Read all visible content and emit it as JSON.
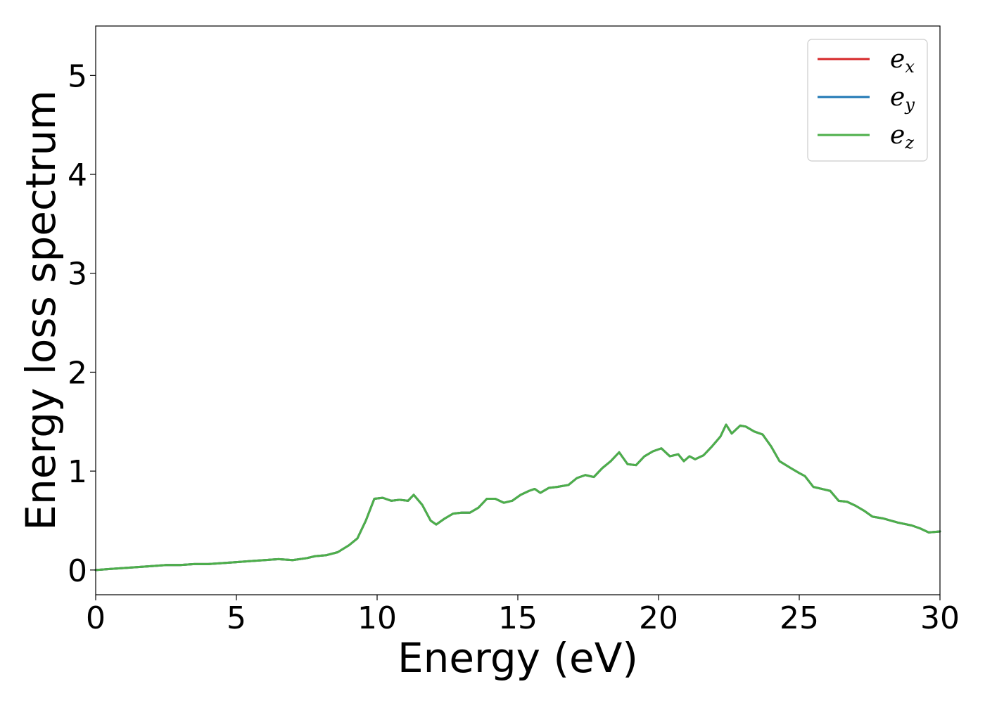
{
  "chart_data": {
    "type": "line",
    "title": "",
    "xlabel": "Energy (eV)",
    "ylabel": "Energy loss spectrum",
    "xlim": [
      0,
      30
    ],
    "ylim": [
      -0.25,
      5.5
    ],
    "xticks": [
      "0",
      "5",
      "10",
      "15",
      "20",
      "25",
      "30"
    ],
    "yticks": [
      "0",
      "1",
      "2",
      "3",
      "4",
      "5"
    ],
    "grid": false,
    "legend_position": "top-right",
    "series": [
      {
        "name": "e_x",
        "label_base": "e",
        "label_sub": "x",
        "color": "#d62728",
        "x": [
          0,
          0.5,
          1,
          1.5,
          2,
          2.5,
          3,
          3.5,
          4,
          4.5,
          5,
          5.5,
          6,
          6.5,
          7,
          7.5,
          7.8,
          8.2,
          8.6,
          9,
          9.3,
          9.6,
          9.9,
          10.2,
          10.5,
          10.8,
          11.1,
          11.3,
          11.6,
          11.9,
          12.1,
          12.4,
          12.7,
          13,
          13.3,
          13.6,
          13.9,
          14.2,
          14.5,
          14.8,
          15.1,
          15.4,
          15.6,
          15.8,
          16.1,
          16.4,
          16.8,
          17.1,
          17.4,
          17.7,
          18,
          18.3,
          18.6,
          18.9,
          19.2,
          19.5,
          19.8,
          20.1,
          20.4,
          20.7,
          20.9,
          21.1,
          21.3,
          21.6,
          21.9,
          22.2,
          22.4,
          22.6,
          22.9,
          23.1,
          23.4,
          23.7,
          24,
          24.3,
          24.7,
          25,
          25.2,
          25.5,
          25.8,
          26.1,
          26.4,
          26.7,
          27,
          27.3,
          27.6,
          28,
          28.5,
          29,
          29.3,
          29.6,
          30
        ],
        "y": [
          0.0,
          0.01,
          0.02,
          0.03,
          0.04,
          0.05,
          0.05,
          0.06,
          0.06,
          0.07,
          0.08,
          0.09,
          0.1,
          0.11,
          0.1,
          0.12,
          0.14,
          0.15,
          0.18,
          0.25,
          0.32,
          0.5,
          0.72,
          0.73,
          0.7,
          0.71,
          0.7,
          0.76,
          0.66,
          0.5,
          0.46,
          0.52,
          0.57,
          0.58,
          0.58,
          0.63,
          0.72,
          0.72,
          0.68,
          0.7,
          0.76,
          0.8,
          0.82,
          0.78,
          0.83,
          0.84,
          0.86,
          0.93,
          0.96,
          0.94,
          1.03,
          1.1,
          1.19,
          1.07,
          1.06,
          1.15,
          1.2,
          1.23,
          1.15,
          1.17,
          1.1,
          1.15,
          1.12,
          1.16,
          1.25,
          1.35,
          1.47,
          1.38,
          1.46,
          1.45,
          1.4,
          1.37,
          1.25,
          1.1,
          1.03,
          0.98,
          0.95,
          0.84,
          0.82,
          0.8,
          0.7,
          0.69,
          0.65,
          0.6,
          0.54,
          0.52,
          0.48,
          0.45,
          0.42,
          0.38,
          0.39
        ]
      },
      {
        "name": "e_y",
        "label_base": "e",
        "label_sub": "y",
        "color": "#1f77b4",
        "x": [
          0,
          0.5,
          1,
          1.5,
          2,
          2.5,
          3,
          3.5,
          4,
          4.5,
          5,
          5.5,
          6,
          6.5,
          7,
          7.5,
          7.8,
          8.2,
          8.6,
          9,
          9.3,
          9.6,
          9.9,
          10.2,
          10.5,
          10.8,
          11.1,
          11.3,
          11.6,
          11.9,
          12.1,
          12.4,
          12.7,
          13,
          13.3,
          13.6,
          13.9,
          14.2,
          14.5,
          14.8,
          15.1,
          15.4,
          15.6,
          15.8,
          16.1,
          16.4,
          16.8,
          17.1,
          17.4,
          17.7,
          18,
          18.3,
          18.6,
          18.9,
          19.2,
          19.5,
          19.8,
          20.1,
          20.4,
          20.7,
          20.9,
          21.1,
          21.3,
          21.6,
          21.9,
          22.2,
          22.4,
          22.6,
          22.9,
          23.1,
          23.4,
          23.7,
          24,
          24.3,
          24.7,
          25,
          25.2,
          25.5,
          25.8,
          26.1,
          26.4,
          26.7,
          27,
          27.3,
          27.6,
          28,
          28.5,
          29,
          29.3,
          29.6,
          30
        ],
        "y": [
          0.0,
          0.01,
          0.02,
          0.03,
          0.04,
          0.05,
          0.05,
          0.06,
          0.06,
          0.07,
          0.08,
          0.09,
          0.1,
          0.11,
          0.1,
          0.12,
          0.14,
          0.15,
          0.18,
          0.25,
          0.32,
          0.5,
          0.72,
          0.73,
          0.7,
          0.71,
          0.7,
          0.76,
          0.66,
          0.5,
          0.46,
          0.52,
          0.57,
          0.58,
          0.58,
          0.63,
          0.72,
          0.72,
          0.68,
          0.7,
          0.76,
          0.8,
          0.82,
          0.78,
          0.83,
          0.84,
          0.86,
          0.93,
          0.96,
          0.94,
          1.03,
          1.1,
          1.19,
          1.07,
          1.06,
          1.15,
          1.2,
          1.23,
          1.15,
          1.17,
          1.1,
          1.15,
          1.12,
          1.16,
          1.25,
          1.35,
          1.47,
          1.38,
          1.46,
          1.45,
          1.4,
          1.37,
          1.25,
          1.1,
          1.03,
          0.98,
          0.95,
          0.84,
          0.82,
          0.8,
          0.7,
          0.69,
          0.65,
          0.6,
          0.54,
          0.52,
          0.48,
          0.45,
          0.42,
          0.38,
          0.39
        ]
      },
      {
        "name": "e_z",
        "label_base": "e",
        "label_sub": "z",
        "color": "#4daf4a",
        "x": [
          0,
          0.5,
          1,
          1.5,
          2,
          2.5,
          3,
          3.5,
          4,
          4.5,
          5,
          5.5,
          6,
          6.5,
          7,
          7.5,
          7.8,
          8.2,
          8.6,
          9,
          9.3,
          9.6,
          9.9,
          10.2,
          10.5,
          10.8,
          11.1,
          11.3,
          11.6,
          11.9,
          12.1,
          12.4,
          12.7,
          13,
          13.3,
          13.6,
          13.9,
          14.2,
          14.5,
          14.8,
          15.1,
          15.4,
          15.6,
          15.8,
          16.1,
          16.4,
          16.8,
          17.1,
          17.4,
          17.7,
          18,
          18.3,
          18.6,
          18.9,
          19.2,
          19.5,
          19.8,
          20.1,
          20.4,
          20.7,
          20.9,
          21.1,
          21.3,
          21.6,
          21.9,
          22.2,
          22.4,
          22.6,
          22.9,
          23.1,
          23.4,
          23.7,
          24,
          24.3,
          24.7,
          25,
          25.2,
          25.5,
          25.8,
          26.1,
          26.4,
          26.7,
          27,
          27.3,
          27.6,
          28,
          28.5,
          29,
          29.3,
          29.6,
          30
        ],
        "y": [
          0.0,
          0.01,
          0.02,
          0.03,
          0.04,
          0.05,
          0.05,
          0.06,
          0.06,
          0.07,
          0.08,
          0.09,
          0.1,
          0.11,
          0.1,
          0.12,
          0.14,
          0.15,
          0.18,
          0.25,
          0.32,
          0.5,
          0.72,
          0.73,
          0.7,
          0.71,
          0.7,
          0.76,
          0.66,
          0.5,
          0.46,
          0.52,
          0.57,
          0.58,
          0.58,
          0.63,
          0.72,
          0.72,
          0.68,
          0.7,
          0.76,
          0.8,
          0.82,
          0.78,
          0.83,
          0.84,
          0.86,
          0.93,
          0.96,
          0.94,
          1.03,
          1.1,
          1.19,
          1.07,
          1.06,
          1.15,
          1.2,
          1.23,
          1.15,
          1.17,
          1.1,
          1.15,
          1.12,
          1.16,
          1.25,
          1.35,
          1.47,
          1.38,
          1.46,
          1.45,
          1.4,
          1.37,
          1.25,
          1.1,
          1.03,
          0.98,
          0.95,
          0.84,
          0.82,
          0.8,
          0.7,
          0.69,
          0.65,
          0.6,
          0.54,
          0.52,
          0.48,
          0.45,
          0.42,
          0.38,
          0.39
        ]
      }
    ]
  }
}
